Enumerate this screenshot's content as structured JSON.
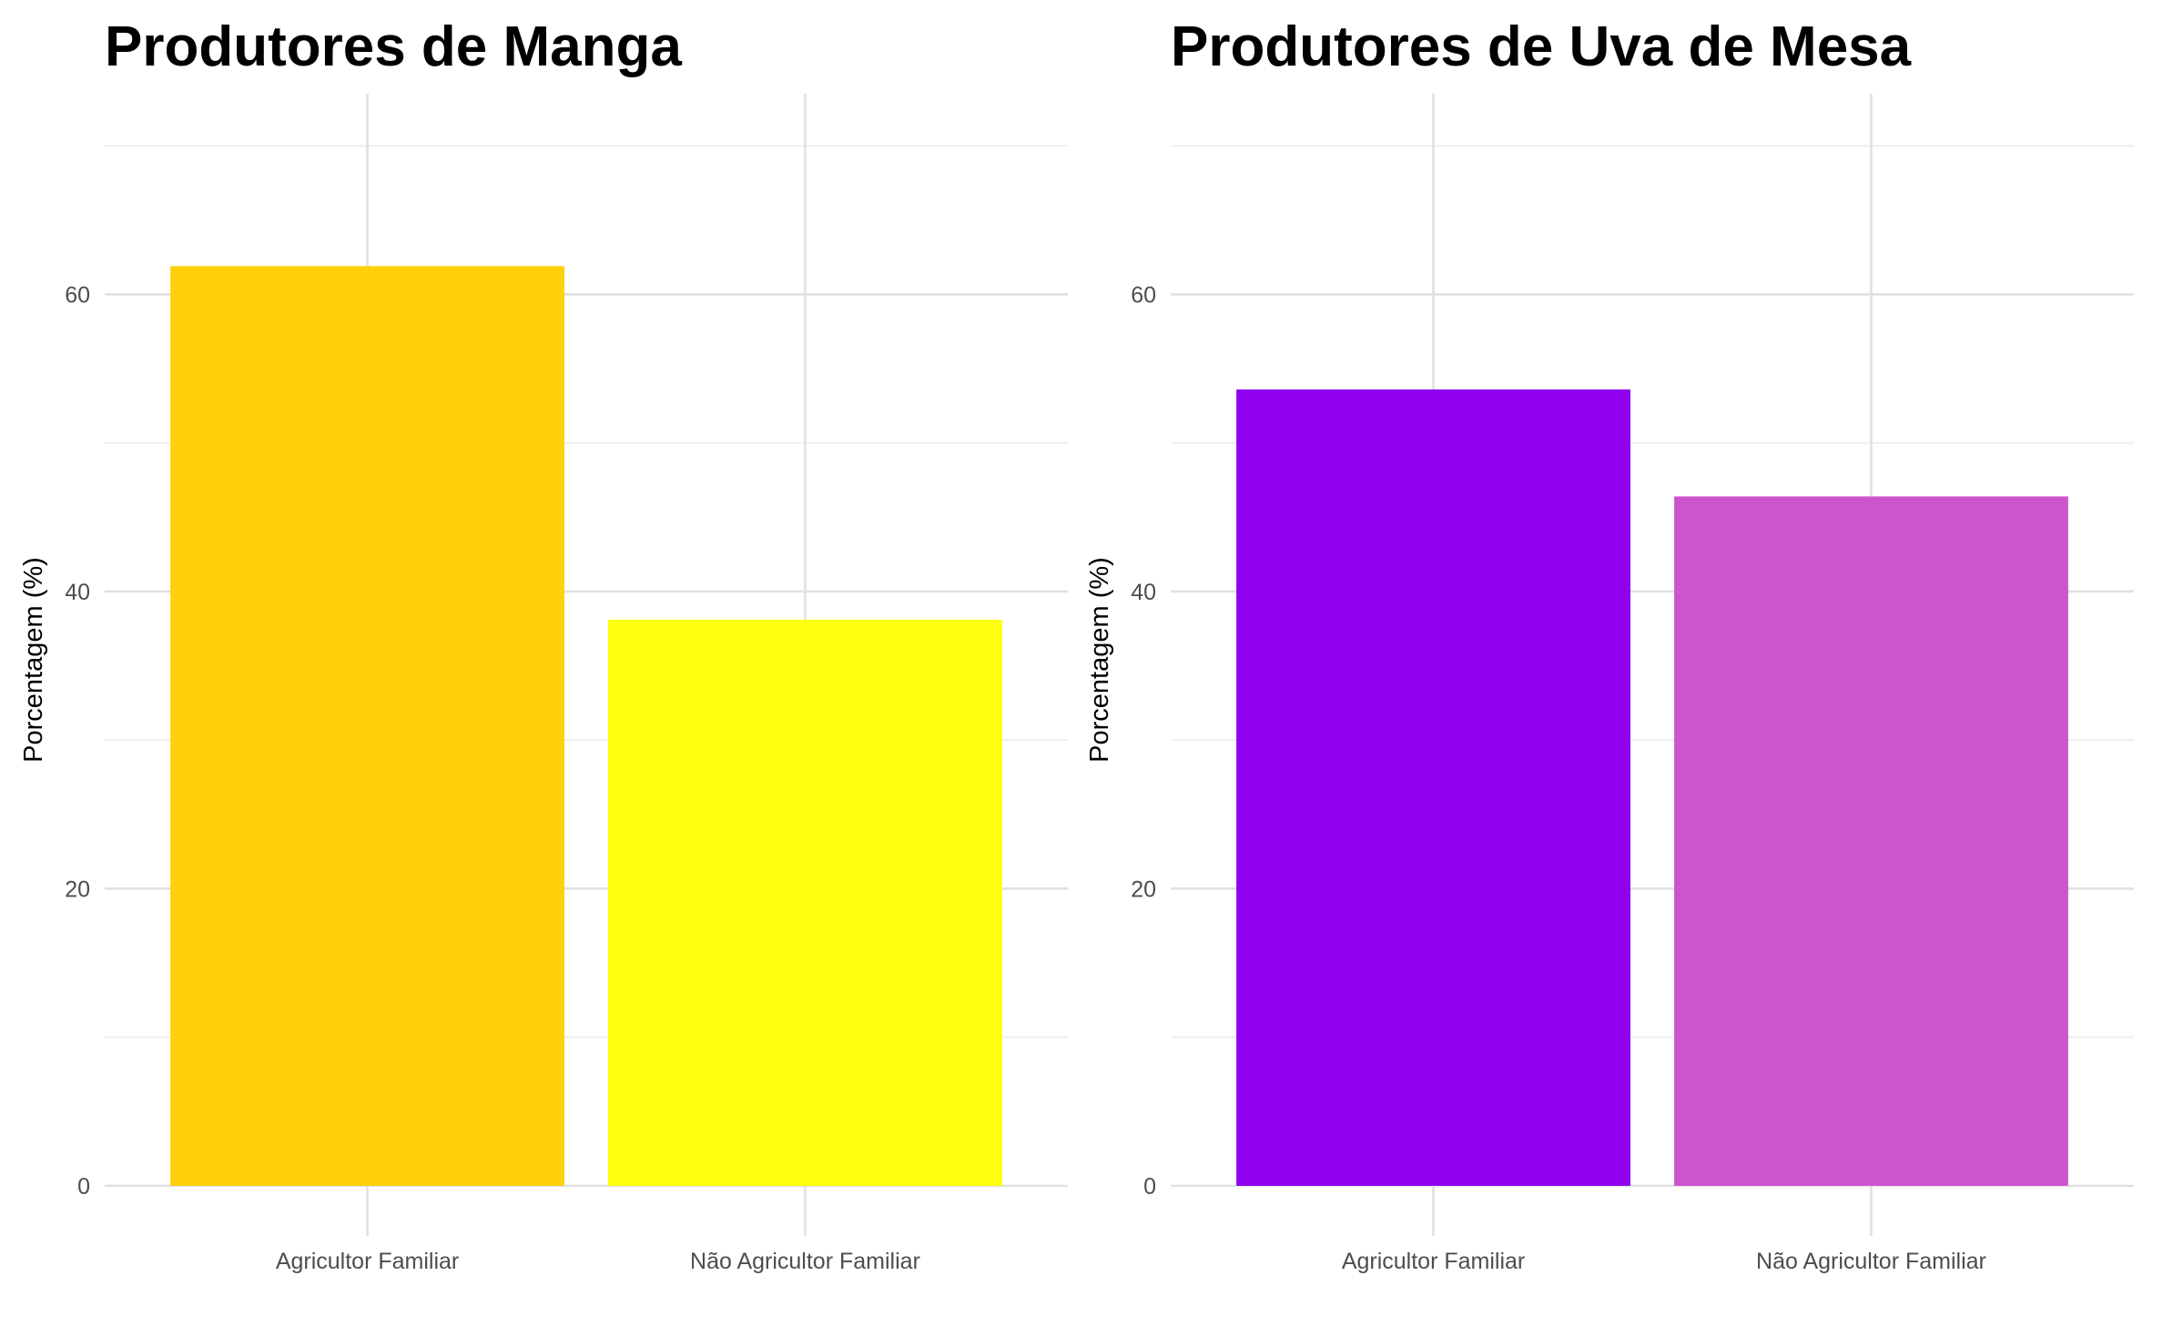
{
  "chart_data": [
    {
      "type": "bar",
      "title": "Produtores de Manga",
      "xlabel": "",
      "ylabel": "Porcentagem (%)",
      "categories": [
        "Agricultor Familiar",
        "Não Agricultor Familiar"
      ],
      "values": [
        61.9,
        38.1
      ],
      "colors": [
        "#FFD10A",
        "#FFFF0F"
      ],
      "ylim": [
        0,
        73.5
      ],
      "yticks": [
        0,
        20,
        40,
        60
      ],
      "grid": true,
      "legend": "none"
    },
    {
      "type": "bar",
      "title": "Produtores de Uva de Mesa",
      "xlabel": "",
      "ylabel": "Porcentagem (%)",
      "categories": [
        "Agricultor Familiar",
        "Não Agricultor Familiar"
      ],
      "values": [
        53.6,
        46.4
      ],
      "colors": [
        "#8E00EE",
        "#CE54CE"
      ],
      "ylim": [
        0,
        73.5
      ],
      "yticks": [
        0,
        20,
        40,
        60
      ],
      "grid": true,
      "legend": "none"
    }
  ]
}
